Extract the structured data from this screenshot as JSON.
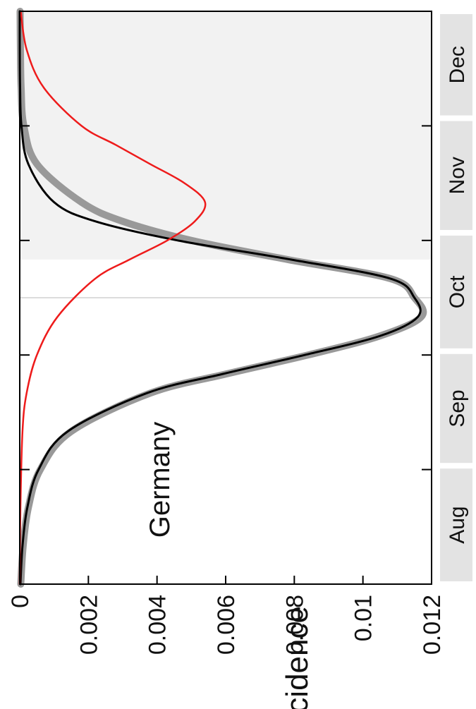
{
  "chart_data": {
    "type": "line",
    "orientation": "rotated-90-clockwise",
    "annotation": "Germany",
    "ylabel": "incidence",
    "xlabel": "",
    "ylim": [
      0,
      0.012
    ],
    "y_ticks": [
      0,
      0.002,
      0.004,
      0.006,
      0.008,
      0.01,
      0.012
    ],
    "y_tick_labels": [
      "0",
      "0.002",
      "0.004",
      "0.006",
      "0.008",
      "0.01",
      "0.012"
    ],
    "xlim": [
      0,
      150
    ],
    "month_labels": [
      "Aug",
      "Sep",
      "Oct",
      "Nov",
      "Dec"
    ],
    "month_boundaries": [
      0,
      31,
      61,
      92,
      122,
      150
    ],
    "reference_line_x": 75,
    "shaded_region": [
      85,
      150
    ],
    "series": [
      {
        "color": "#999999",
        "x": [
          0,
          10,
          20,
          30,
          40,
          50,
          55,
          60,
          65,
          70,
          75,
          80,
          85,
          90,
          95,
          100,
          110,
          120,
          130,
          140,
          150
        ],
        "y": [
          3e-05,
          0.0001,
          0.00025,
          0.0006,
          0.0015,
          0.0038,
          0.006,
          0.0084,
          0.0105,
          0.0117,
          0.0115,
          0.0108,
          0.0078,
          0.005,
          0.003,
          0.0018,
          0.0005,
          0.00012,
          4e-05,
          2e-05,
          1e-05
        ]
      },
      {
        "color": "#000000",
        "x": [
          0,
          10,
          20,
          30,
          40,
          50,
          55,
          60,
          65,
          70,
          75,
          80,
          85,
          90,
          95,
          100,
          110,
          120,
          130,
          140,
          150
        ],
        "y": [
          2e-05,
          8e-05,
          0.00022,
          0.00055,
          0.0014,
          0.0037,
          0.0059,
          0.0083,
          0.0105,
          0.0116,
          0.0115,
          0.0108,
          0.0079,
          0.0046,
          0.0022,
          0.001,
          0.00025,
          5e-05,
          1e-05,
          0.0,
          0.0
        ]
      },
      {
        "color": "#ee1b1b",
        "x": [
          0,
          20,
          40,
          50,
          60,
          70,
          80,
          85,
          90,
          95,
          100,
          105,
          110,
          115,
          120,
          130,
          140,
          150
        ],
        "y": [
          0.0,
          2e-05,
          8e-05,
          0.0002,
          0.0005,
          0.0011,
          0.0022,
          0.0032,
          0.0043,
          0.0051,
          0.0054,
          0.0048,
          0.0038,
          0.0028,
          0.0018,
          0.0007,
          0.0002,
          3e-05
        ]
      }
    ]
  }
}
